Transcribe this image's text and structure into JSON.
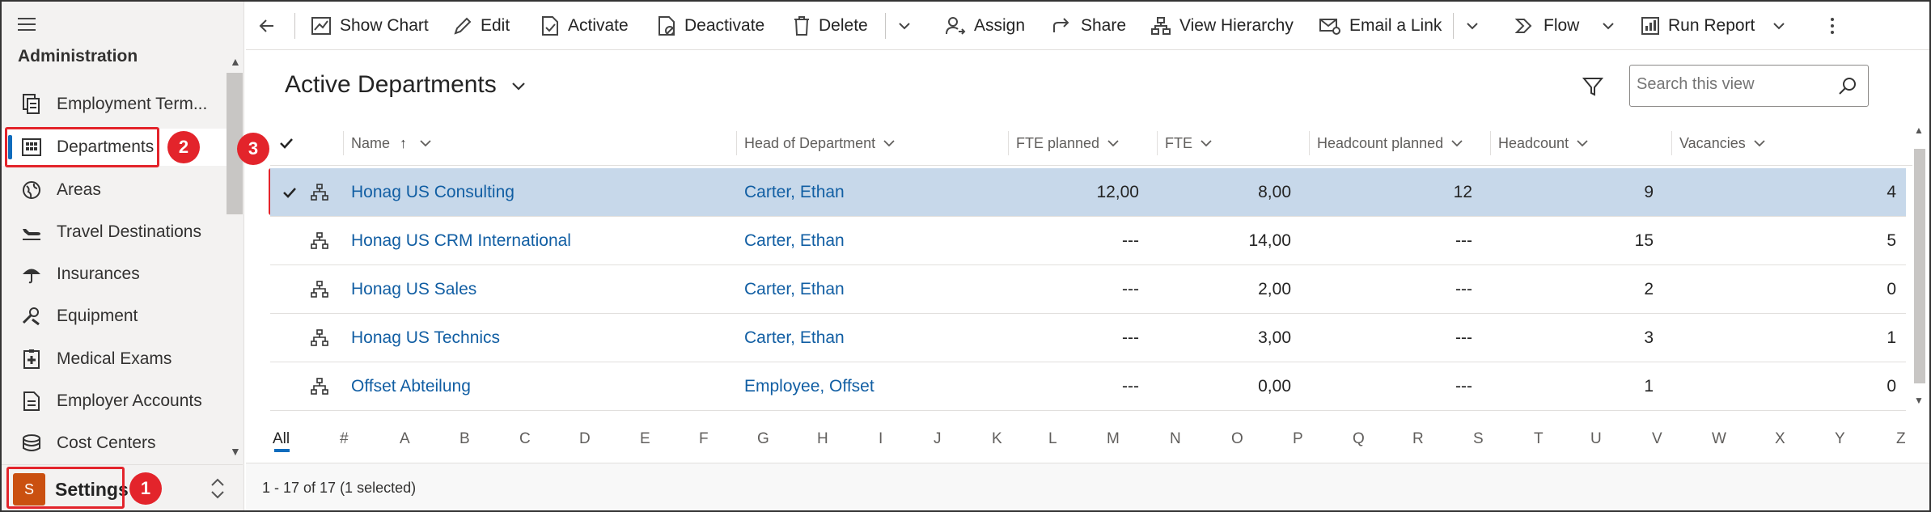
{
  "sidebar": {
    "section_title": "Administration",
    "items": [
      {
        "label": "Employment Term...",
        "icon": "documents-icon"
      },
      {
        "label": "Departments",
        "icon": "building-icon"
      },
      {
        "label": "Areas",
        "icon": "globe-icon"
      },
      {
        "label": "Travel Destinations",
        "icon": "airplane-icon"
      },
      {
        "label": "Insurances",
        "icon": "umbrella-icon"
      },
      {
        "label": "Equipment",
        "icon": "tools-icon"
      },
      {
        "label": "Medical Exams",
        "icon": "medical-icon"
      },
      {
        "label": "Employer Accounts",
        "icon": "document-icon"
      },
      {
        "label": "Cost Centers",
        "icon": "coins-icon"
      }
    ],
    "area_avatar": "S",
    "area_label": "Settings"
  },
  "annotations": [
    "1",
    "2",
    "3"
  ],
  "commands": {
    "show_chart": "Show Chart",
    "edit": "Edit",
    "activate": "Activate",
    "deactivate": "Deactivate",
    "delete": "Delete",
    "assign": "Assign",
    "share": "Share",
    "view_hierarchy": "View Hierarchy",
    "email_link": "Email a Link",
    "flow": "Flow",
    "run_report": "Run Report"
  },
  "view": {
    "title": "Active Departments",
    "search_placeholder": "Search this view"
  },
  "grid": {
    "columns": [
      "Name",
      "Head of Department",
      "FTE planned",
      "FTE",
      "Headcount planned",
      "Headcount",
      "Vacancies"
    ],
    "rows": [
      {
        "name": "Honag US Consulting",
        "head": "Carter, Ethan",
        "fte_planned": "12,00",
        "fte": "8,00",
        "headcount_planned": "12",
        "headcount": "9",
        "vacancies": "4",
        "selected": true
      },
      {
        "name": "Honag US CRM International",
        "head": "Carter, Ethan",
        "fte_planned": "---",
        "fte": "14,00",
        "headcount_planned": "---",
        "headcount": "15",
        "vacancies": "5",
        "selected": false
      },
      {
        "name": "Honag US Sales",
        "head": "Carter, Ethan",
        "fte_planned": "---",
        "fte": "2,00",
        "headcount_planned": "---",
        "headcount": "2",
        "vacancies": "0",
        "selected": false
      },
      {
        "name": "Honag US Technics",
        "head": "Carter, Ethan",
        "fte_planned": "---",
        "fte": "3,00",
        "headcount_planned": "---",
        "headcount": "3",
        "vacancies": "1",
        "selected": false
      },
      {
        "name": "Offset Abteilung",
        "head": "Employee, Offset",
        "fte_planned": "---",
        "fte": "0,00",
        "headcount_planned": "---",
        "headcount": "1",
        "vacancies": "0",
        "selected": false
      }
    ]
  },
  "alphabet": [
    "All",
    "#",
    "A",
    "B",
    "C",
    "D",
    "E",
    "F",
    "G",
    "H",
    "I",
    "J",
    "K",
    "L",
    "M",
    "N",
    "O",
    "P",
    "Q",
    "R",
    "S",
    "T",
    "U",
    "V",
    "W",
    "X",
    "Y",
    "Z"
  ],
  "footer": {
    "status": "1 - 17 of 17 (1 selected)"
  },
  "colors": {
    "accent": "#0f6cbd",
    "selected_row": "#c7d8ea",
    "annotation_red": "#e3242b",
    "avatar": "#ca5010",
    "link": "#115ea3"
  }
}
